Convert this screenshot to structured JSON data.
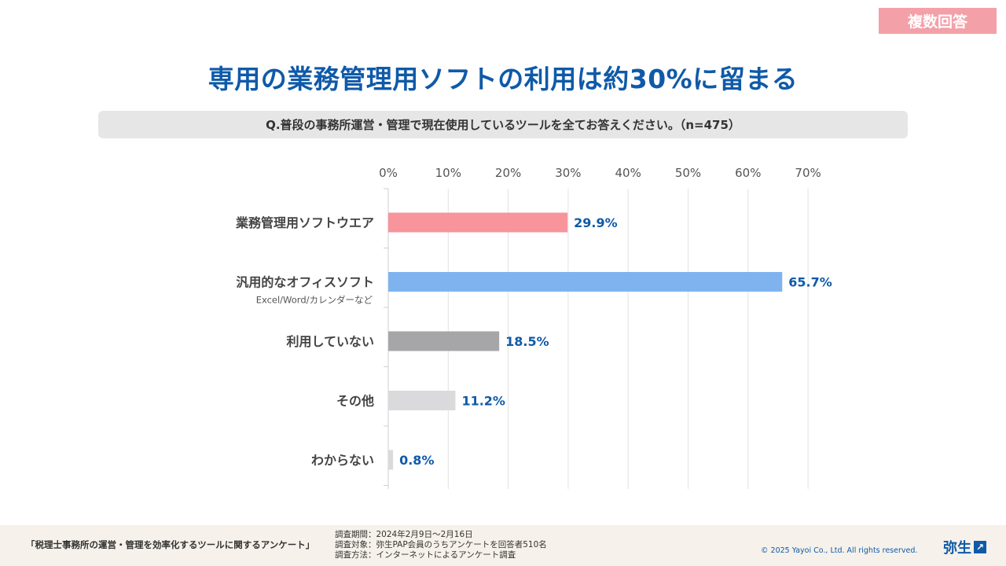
{
  "badge": "複数回答",
  "title": "専用の業務管理用ソフトの利用は約30%に留まる",
  "question": "Q.普段の事務所運営・管理で現在使用しているツールを全てお答えください。（n=475）",
  "chart_data": {
    "type": "bar",
    "orientation": "horizontal",
    "categories": [
      "業務管理用ソフトウエア",
      "汎用的なオフィスソフト",
      "利用していない",
      "その他",
      "わからない"
    ],
    "sublabels": [
      "",
      "Excel/Word/カレンダーなど",
      "",
      "",
      ""
    ],
    "values": [
      29.9,
      65.7,
      18.5,
      11.2,
      0.8
    ],
    "value_labels": [
      "29.9%",
      "65.7%",
      "18.5%",
      "11.2%",
      "0.8%"
    ],
    "colors": [
      "#f7949c",
      "#7fb3f0",
      "#a6a6a8",
      "#dadadc",
      "#dadadc"
    ],
    "xlim": [
      0,
      70
    ],
    "xticks": [
      "0%",
      "10%",
      "20%",
      "30%",
      "40%",
      "50%",
      "60%",
      "70%"
    ],
    "grid": true,
    "label_color": "#0f5aa8"
  },
  "footer": {
    "survey_name": "「税理士事務所の運営・管理を効率化するツールに関するアンケート」",
    "period": "調査期間：2024年2月9日〜2月16日",
    "target": "調査対象：弥生PAP会員のうちアンケートを回答者510名",
    "method": "調査方法：インターネットによるアンケート調査",
    "copyright": "© 2025 Yayoi Co., Ltd.  All rights reserved.",
    "logo_text": "弥生",
    "logo_mark": "↗"
  }
}
